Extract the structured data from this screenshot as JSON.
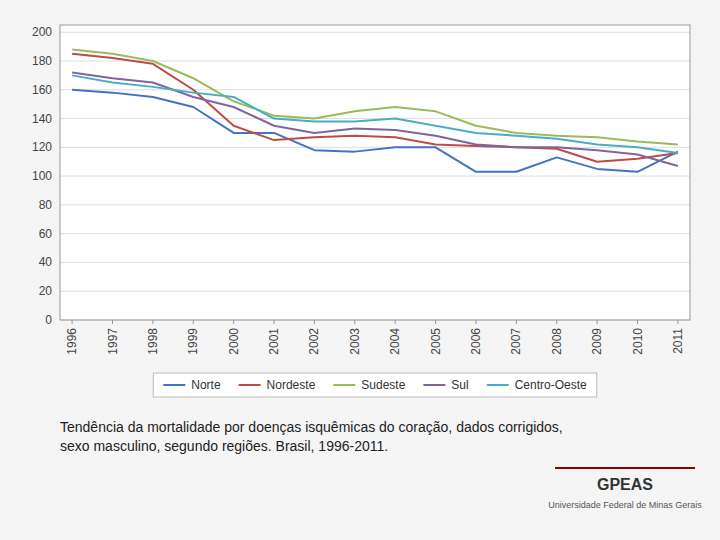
{
  "chart_data": {
    "type": "line",
    "title": "Tendência da mortalidade por doenças isquêmicas do coração, dados corrigidos, sexo masculino, segundo regiões. Brasil, 1996-2011.",
    "annotations": [
      "GPEAS",
      "Universidade Federal de Minas Gerais"
    ],
    "x": [
      1996,
      1997,
      1998,
      1999,
      2000,
      2001,
      2002,
      2003,
      2004,
      2005,
      2006,
      2007,
      2008,
      2009,
      2010,
      2011
    ],
    "xlim": [
      1995.7,
      2011.3
    ],
    "xticks": [
      1996,
      1997,
      1998,
      1999,
      2000,
      2001,
      2002,
      2003,
      2004,
      2005,
      2006,
      2007,
      2008,
      2009,
      2010,
      2011
    ],
    "series": [
      {
        "name": "Norte",
        "color": "#4472C4",
        "values": [
          160,
          158,
          155,
          148,
          130,
          130,
          118,
          117,
          120,
          120,
          103,
          103,
          113,
          105,
          103,
          117
        ]
      },
      {
        "name": "Nordeste",
        "color": "#BE4B48",
        "values": [
          185,
          182,
          178,
          160,
          135,
          125,
          127,
          128,
          127,
          122,
          121,
          120,
          119,
          110,
          112,
          116
        ]
      },
      {
        "name": "Sudeste",
        "color": "#9BBB59",
        "values": [
          188,
          185,
          180,
          168,
          152,
          142,
          140,
          145,
          148,
          145,
          135,
          130,
          128,
          127,
          124,
          122
        ]
      },
      {
        "name": "Sul",
        "color": "#8064A2",
        "values": [
          172,
          168,
          165,
          155,
          148,
          135,
          130,
          133,
          132,
          128,
          122,
          120,
          120,
          118,
          115,
          107
        ]
      },
      {
        "name": "Centro-Oeste",
        "color": "#4BACC6",
        "values": [
          170,
          165,
          162,
          158,
          155,
          140,
          138,
          138,
          140,
          135,
          130,
          128,
          126,
          122,
          120,
          116
        ]
      }
    ],
    "ylim": [
      0,
      205
    ],
    "yticks": [
      0,
      20,
      40,
      60,
      80,
      100,
      120,
      140,
      160,
      180,
      200
    ],
    "grid": true,
    "legend": "bottom"
  }
}
